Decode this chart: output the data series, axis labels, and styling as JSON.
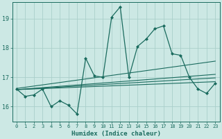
{
  "xlabel": "Humidex (Indice chaleur)",
  "bg_color": "#cce8e4",
  "grid_color": "#aacfca",
  "line_color": "#1a6b5e",
  "xlim": [
    -0.5,
    23.5
  ],
  "ylim": [
    15.5,
    19.55
  ],
  "yticks": [
    16,
    17,
    18,
    19
  ],
  "xticks": [
    0,
    1,
    2,
    3,
    4,
    5,
    6,
    7,
    8,
    9,
    10,
    11,
    12,
    13,
    14,
    15,
    16,
    17,
    18,
    19,
    20,
    21,
    22,
    23
  ],
  "main_x": [
    0,
    1,
    2,
    3,
    4,
    5,
    6,
    7,
    8,
    9,
    10,
    11,
    12,
    13,
    14,
    15,
    16,
    17,
    18,
    19,
    20,
    21,
    22,
    23
  ],
  "main_y": [
    16.6,
    16.35,
    16.4,
    16.6,
    16.0,
    16.2,
    16.05,
    15.75,
    17.65,
    17.05,
    17.0,
    19.05,
    19.4,
    17.0,
    18.05,
    18.3,
    18.65,
    18.75,
    17.8,
    17.75,
    17.0,
    16.6,
    16.45,
    16.8
  ],
  "trend1_x": [
    0,
    23
  ],
  "trend1_y": [
    16.62,
    17.55
  ],
  "trend2_x": [
    0,
    23
  ],
  "trend2_y": [
    16.58,
    16.98
  ],
  "trend3_x": [
    0,
    23
  ],
  "trend3_y": [
    16.58,
    17.1
  ],
  "trend4_x": [
    0,
    23
  ],
  "trend4_y": [
    16.58,
    16.85
  ]
}
